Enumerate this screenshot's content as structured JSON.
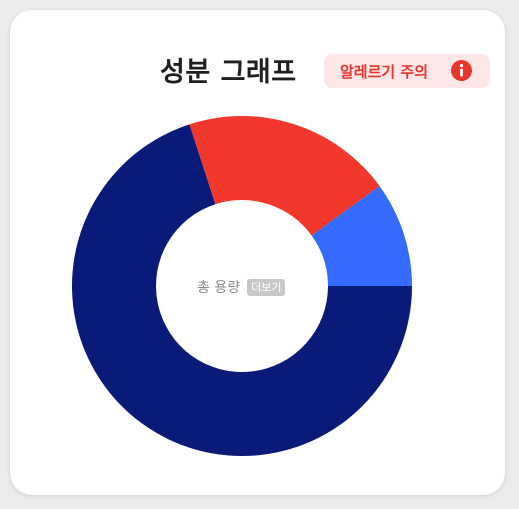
{
  "header": {
    "title": "성분 그래프",
    "allergy_label": "알레르기 주의",
    "allergy_icon": "info-icon",
    "allergy_color": "#e8352e",
    "allergy_bg": "#fde7e7"
  },
  "center": {
    "label": "총 용량",
    "more_label": "더보기"
  },
  "chart_data": {
    "type": "pie",
    "donut": true,
    "slices": [
      {
        "value": 70,
        "color": "#0a1a78"
      },
      {
        "value": 20,
        "color": "#f2382c"
      },
      {
        "value": 10,
        "color": "#356bff"
      }
    ]
  }
}
